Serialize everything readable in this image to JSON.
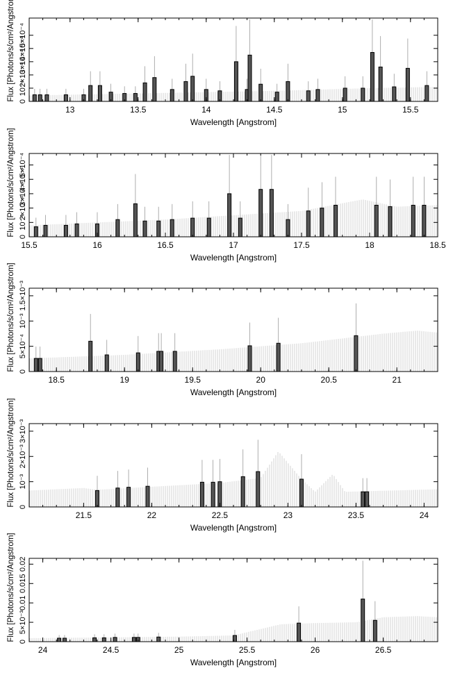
{
  "chart_data": [
    {
      "type": "bar",
      "xlabel": "Wavelength [Angstrom]",
      "ylabel": "Flux [Photons/s/cm²/Angstrom]",
      "xlim": [
        12.7,
        15.7
      ],
      "ylim": [
        0,
        0.00063
      ],
      "xticks": [
        "13",
        "13.5",
        "14",
        "14.5",
        "15",
        "15.5"
      ],
      "xtick_values": [
        13,
        13.5,
        14,
        14.5,
        15,
        15.5
      ],
      "yticks": [
        "0",
        "10⁻⁴",
        "2×10⁻⁴",
        "3×10⁻⁴",
        "4×10⁻⁴",
        "5×10⁻⁴"
      ],
      "ytick_values": [
        0,
        0.0001,
        0.0002,
        0.0003,
        0.0004,
        0.0005
      ],
      "continuum": [
        [
          12.7,
          4.5e-05
        ],
        [
          13.5,
          6e-05
        ],
        [
          14.5,
          8e-05
        ],
        [
          15.2,
          0.0001
        ],
        [
          15.7,
          0.00011
        ]
      ],
      "bins": [
        [
          12.74,
          5e-05
        ],
        [
          12.78,
          5e-05
        ],
        [
          12.83,
          5e-05
        ],
        [
          12.97,
          5e-05
        ],
        [
          13.1,
          5e-05
        ],
        [
          13.15,
          0.00012
        ],
        [
          13.22,
          0.00012
        ],
        [
          13.3,
          7e-05
        ],
        [
          13.4,
          6e-05
        ],
        [
          13.48,
          6e-05
        ],
        [
          13.55,
          0.00014
        ],
        [
          13.62,
          0.00018
        ],
        [
          13.75,
          9e-05
        ],
        [
          13.85,
          0.00015
        ],
        [
          13.9,
          0.00019
        ],
        [
          14.0,
          9e-05
        ],
        [
          14.1,
          8e-05
        ],
        [
          14.22,
          0.0003
        ],
        [
          14.3,
          9e-05
        ],
        [
          14.32,
          0.00035
        ],
        [
          14.4,
          0.00013
        ],
        [
          14.52,
          7e-05
        ],
        [
          14.6,
          0.00015
        ],
        [
          14.75,
          8e-05
        ],
        [
          14.82,
          9e-05
        ],
        [
          15.02,
          0.0001
        ],
        [
          15.15,
          0.0001
        ],
        [
          15.22,
          0.00037
        ],
        [
          15.28,
          0.00026
        ],
        [
          15.38,
          0.00011
        ],
        [
          15.48,
          0.00025
        ],
        [
          15.62,
          0.00012
        ]
      ]
    },
    {
      "type": "bar",
      "xlabel": "Wavelength [Angstrom]",
      "ylabel": "Flux [Photons/s/cm²/Angstrom]",
      "xlim": [
        15.5,
        18.5
      ],
      "ylim": [
        0,
        0.00058
      ],
      "xticks": [
        "15.5",
        "16",
        "16.5",
        "17",
        "17.5",
        "18",
        "18.5"
      ],
      "xtick_values": [
        15.5,
        16,
        16.5,
        17,
        17.5,
        18,
        18.5
      ],
      "yticks": [
        "0",
        "10⁻⁴",
        "2×10⁻⁴",
        "3×10⁻⁴",
        "4×10⁻⁴",
        "5×10⁻⁴"
      ],
      "ytick_values": [
        0,
        0.0001,
        0.0002,
        0.0003,
        0.0004,
        0.0005
      ],
      "continuum": [
        [
          15.5,
          8e-05
        ],
        [
          16.5,
          0.00012
        ],
        [
          17.5,
          0.00018
        ],
        [
          17.95,
          0.00026
        ],
        [
          18.2,
          0.00021
        ],
        [
          18.5,
          0.00022
        ]
      ],
      "bins": [
        [
          15.55,
          7e-05
        ],
        [
          15.62,
          8e-05
        ],
        [
          15.77,
          8e-05
        ],
        [
          15.85,
          9e-05
        ],
        [
          16.0,
          9e-05
        ],
        [
          16.15,
          0.00012
        ],
        [
          16.28,
          0.00023
        ],
        [
          16.35,
          0.00011
        ],
        [
          16.45,
          0.00011
        ],
        [
          16.55,
          0.00012
        ],
        [
          16.7,
          0.00013
        ],
        [
          16.82,
          0.00013
        ],
        [
          16.97,
          0.0003
        ],
        [
          17.05,
          0.00013
        ],
        [
          17.2,
          0.00033
        ],
        [
          17.28,
          0.00033
        ],
        [
          17.4,
          0.00012
        ],
        [
          17.55,
          0.00018
        ],
        [
          17.65,
          0.0002
        ],
        [
          17.75,
          0.00022
        ],
        [
          18.05,
          0.00022
        ],
        [
          18.15,
          0.00021
        ],
        [
          18.32,
          0.00022
        ],
        [
          18.4,
          0.00022
        ]
      ]
    },
    {
      "type": "bar",
      "xlabel": "Wavelength [Angstrom]",
      "ylabel": "Flux [Photons/s/cm²/Angstrom]",
      "xlim": [
        18.3,
        21.3
      ],
      "ylim": [
        0,
        0.00165
      ],
      "xticks": [
        "18.5",
        "19",
        "19.5",
        "20",
        "20.5",
        "21"
      ],
      "xtick_values": [
        18.5,
        19,
        19.5,
        20,
        20.5,
        21
      ],
      "yticks": [
        "0",
        "5×10⁻⁴",
        "10⁻³",
        "1.5×10⁻³"
      ],
      "ytick_values": [
        0,
        0.0005,
        0.001,
        0.0015
      ],
      "continuum": [
        [
          18.3,
          0.00026
        ],
        [
          19.0,
          0.00033
        ],
        [
          19.7,
          0.00044
        ],
        [
          20.3,
          0.00056
        ],
        [
          20.9,
          0.00075
        ],
        [
          21.15,
          0.00081
        ],
        [
          21.3,
          0.00077
        ]
      ],
      "bins": [
        [
          18.35,
          0.00026
        ],
        [
          18.38,
          0.00026
        ],
        [
          18.75,
          0.0006
        ],
        [
          18.87,
          0.00033
        ],
        [
          19.1,
          0.00037
        ],
        [
          19.25,
          0.0004
        ],
        [
          19.27,
          0.0004
        ],
        [
          19.37,
          0.0004
        ],
        [
          19.92,
          0.00051
        ],
        [
          20.13,
          0.00056
        ],
        [
          20.7,
          0.00071
        ]
      ]
    },
    {
      "type": "bar",
      "xlabel": "Wavelength [Angstrom]",
      "ylabel": "Flux [Photons/s/cm²/Angstrom]",
      "xlim": [
        21.1,
        24.1
      ],
      "ylim": [
        0,
        0.0033
      ],
      "xticks": [
        "21.5",
        "22",
        "22.5",
        "23",
        "23.5",
        "24"
      ],
      "xtick_values": [
        21.5,
        22,
        22.5,
        23,
        23.5,
        24
      ],
      "yticks": [
        "0",
        "10⁻³",
        "2×10⁻³",
        "3×10⁻³"
      ],
      "ytick_values": [
        0,
        0.001,
        0.002,
        0.003
      ],
      "continuum": [
        [
          21.1,
          0.00065
        ],
        [
          21.5,
          0.00075
        ],
        [
          21.6,
          0.00068
        ],
        [
          22.0,
          0.0008
        ],
        [
          22.5,
          0.00095
        ],
        [
          22.8,
          0.00115
        ],
        [
          22.93,
          0.0022
        ],
        [
          23.1,
          0.0011
        ],
        [
          23.2,
          0.0006
        ],
        [
          23.33,
          0.0013
        ],
        [
          23.42,
          0.0006
        ],
        [
          24.1,
          0.0007
        ]
      ],
      "bins": [
        [
          21.6,
          0.00065
        ],
        [
          21.75,
          0.00075
        ],
        [
          21.83,
          0.00078
        ],
        [
          21.97,
          0.00082
        ],
        [
          22.37,
          0.00098
        ],
        [
          22.45,
          0.00098
        ],
        [
          22.5,
          0.001
        ],
        [
          22.67,
          0.0012
        ],
        [
          22.78,
          0.0014
        ],
        [
          23.1,
          0.0011
        ],
        [
          23.55,
          0.0006
        ],
        [
          23.58,
          0.0006
        ]
      ]
    },
    {
      "type": "bar",
      "xlabel": "Wavelength [Angstrom]",
      "ylabel": "Flux [Photons/s/cm²/Angstrom]",
      "xlim": [
        23.9,
        26.9
      ],
      "ylim": [
        0,
        0.0215
      ],
      "xticks": [
        "24",
        "24.5",
        "25",
        "25.5",
        "26",
        "26.5"
      ],
      "xtick_values": [
        24,
        24.5,
        25,
        25.5,
        26,
        26.5
      ],
      "yticks": [
        "0",
        "5×10⁻³",
        "0.01",
        "0.015",
        "0.02"
      ],
      "ytick_values": [
        0,
        0.005,
        0.01,
        0.015,
        0.02
      ],
      "continuum": [
        [
          23.9,
          0.0009
        ],
        [
          24.5,
          0.0011
        ],
        [
          25.0,
          0.0013
        ],
        [
          25.4,
          0.0016
        ],
        [
          25.75,
          0.0045
        ],
        [
          26.0,
          0.0048
        ],
        [
          26.3,
          0.005
        ],
        [
          26.5,
          0.0063
        ],
        [
          26.75,
          0.0066
        ],
        [
          26.9,
          0.0063
        ]
      ],
      "bins": [
        [
          24.12,
          0.0009
        ],
        [
          24.16,
          0.0009
        ],
        [
          24.38,
          0.001
        ],
        [
          24.45,
          0.001
        ],
        [
          24.53,
          0.0011
        ],
        [
          24.67,
          0.0011
        ],
        [
          24.7,
          0.0011
        ],
        [
          24.85,
          0.0012
        ],
        [
          25.41,
          0.0016
        ],
        [
          25.88,
          0.0048
        ],
        [
          26.35,
          0.011
        ],
        [
          26.44,
          0.0055
        ]
      ]
    }
  ]
}
